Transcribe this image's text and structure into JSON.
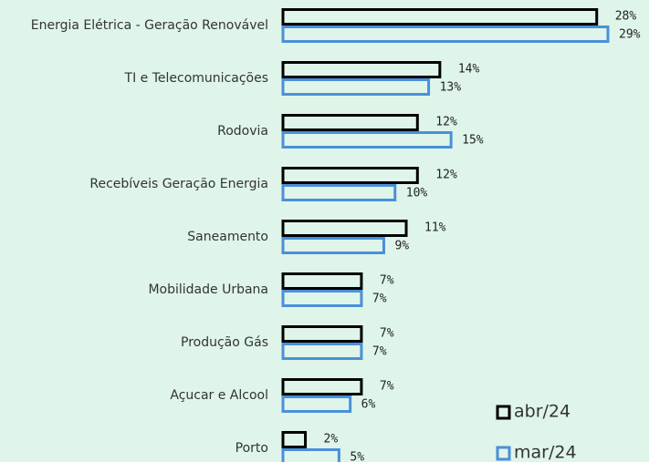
{
  "chart_data": {
    "type": "hbar_outline",
    "categories": [
      "Energia Elétrica - Geração Renovável",
      "TI e Telecomunicações",
      "Rodovia",
      "Recebíveis Geração Energia",
      "Saneamento",
      "Mobilidade Urbana",
      "Produção Gás",
      "Açucar e Alcool",
      "Porto"
    ],
    "series": [
      {
        "name": "abr/24",
        "color": "#000000",
        "values": [
          28,
          14,
          12,
          12,
          11,
          7,
          7,
          7,
          2
        ],
        "value_labels": [
          "28%",
          "14%",
          "12%",
          "12%",
          "11%",
          "7%",
          "7%",
          "7%",
          "2%"
        ]
      },
      {
        "name": "mar/24",
        "color": "#4a90d9",
        "values": [
          29,
          13,
          15,
          10,
          9,
          7,
          7,
          6,
          5
        ],
        "value_labels": [
          "29%",
          "13%",
          "15%",
          "10%",
          "9%",
          "7%",
          "7%",
          "6%",
          "5%"
        ]
      }
    ],
    "legend": "bottom-right"
  }
}
